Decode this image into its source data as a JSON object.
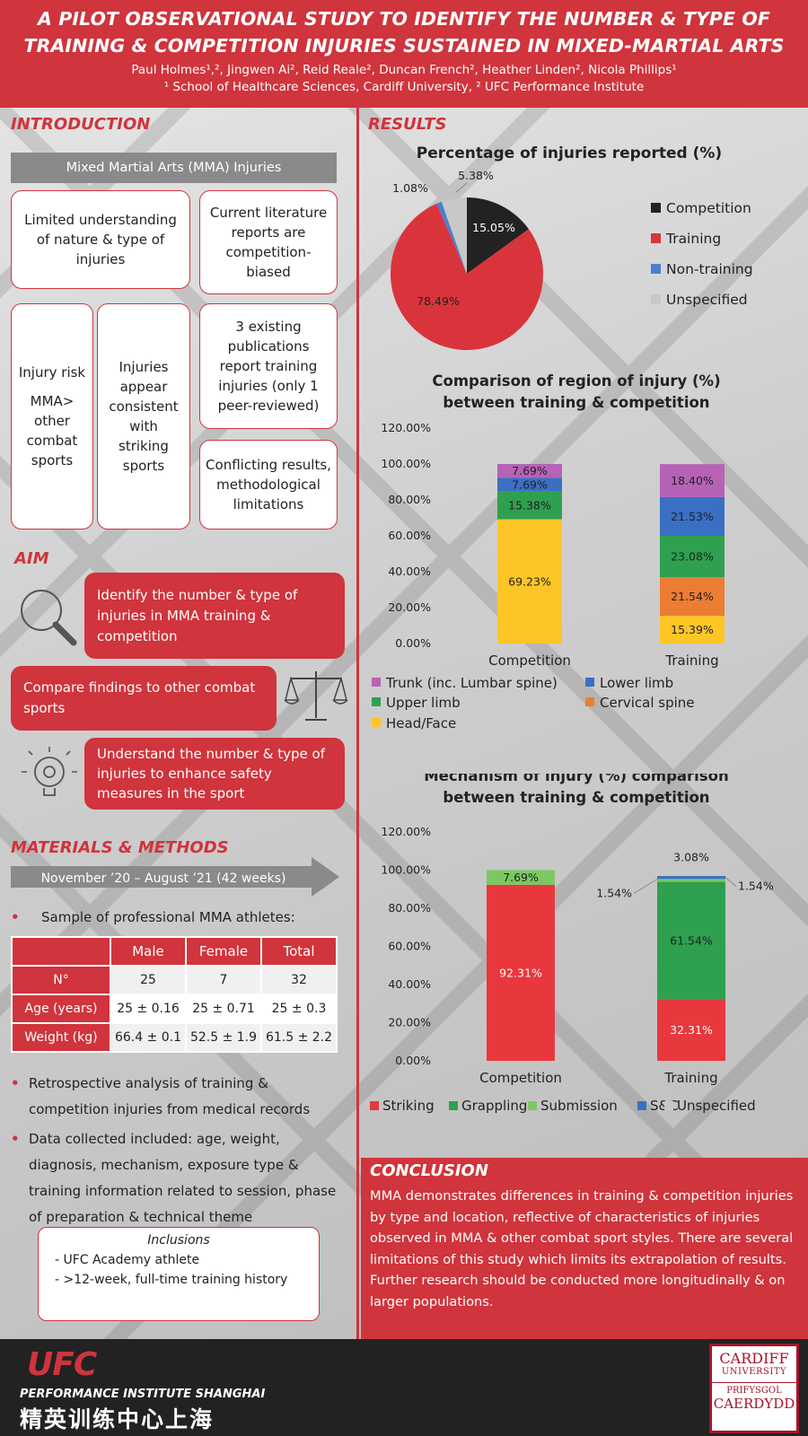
{
  "header": {
    "title_line1": "A PILOT OBSERVATIONAL STUDY TO IDENTIFY THE NUMBER & TYPE OF",
    "title_line2": "TRAINING & COMPETITION INJURIES SUSTAINED IN MIXED-MARTIAL ARTS",
    "authors": "Paul Holmes¹,², Jingwen Ai², Reid Reale², Duncan French², Heather Linden², Nicola Phillips¹",
    "affiliations": "¹ School of Healthcare Sciences, Cardiff University, ² UFC Performance Institute"
  },
  "introduction": {
    "heading": "INTRODUCTION",
    "banner": "Mixed Martial Arts (MMA) Injuries",
    "card1": "Limited understanding of nature & type of injuries",
    "card2": "Current literature reports are competition-biased",
    "card3a": "Injury risk",
    "card3b": "MMA> other combat sports",
    "card4": "Injuries appear consistent with striking sports",
    "card5": "3 existing publications report training injuries (only 1 peer-reviewed)",
    "card6": "Conflicting results, methodological limitations"
  },
  "aim": {
    "heading": "AIM",
    "item1": "Identify the number & type of injuries in MMA training & competition",
    "item2": "Compare findings to other combat sports",
    "item3": "Understand the number & type of injuries to enhance safety measures in the sport"
  },
  "methods": {
    "heading": "MATERIALS & METHODS",
    "period": "November ’20 – August ’21 (42 weeks)",
    "sample": "Sample of professional MMA athletes:",
    "table": {
      "headers": [
        "Male",
        "Female",
        "Total"
      ],
      "rows": [
        {
          "label": "N°",
          "values": [
            "25",
            "7",
            "32"
          ]
        },
        {
          "label": "Age (years)",
          "values": [
            "25 ± 0.16",
            "25 ± 0.71",
            "25 ± 0.3"
          ]
        },
        {
          "label": "Weight (kg)",
          "values": [
            "66.4 ± 0.1",
            "52.5 ± 1.9",
            "61.5 ± 2.2"
          ]
        }
      ]
    },
    "bullet1": "Retrospective analysis of training & competition injuries from medical records",
    "bullet2": "Data collected included: age, weight, diagnosis, mechanism, exposure type & training information related to session, phase of preparation & technical theme",
    "inclusions_title": "Inclusions",
    "inclusion1": "- UFC Academy athlete",
    "inclusion2": "- >12-week, full-time training history"
  },
  "results": {
    "heading": "RESULTS"
  },
  "conclusion": {
    "heading": "CONCLUSION",
    "text": "MMA demonstrates differences in training & competition injuries by type and location, reflective of characteristics of injuries observed in MMA & other combat sport styles. There are several limitations of this study which limits its extrapolation of results. Further research should be conducted more longitudinally & on larger populations."
  },
  "footer": {
    "ufc": "UFC",
    "pi": "PERFORMANCE INSTITUTE SHANGHAI",
    "cn": "精英训练中心上海",
    "cardiff1": "CARDIFF",
    "cardiff2": "UNIVERSITY",
    "cardiff3": "PRIFYSGOL",
    "cardiff4": "CAERDYDD"
  },
  "colors": {
    "accent": "#d0343c",
    "competition": "#222222",
    "training": "#d9343c",
    "nontraining": "#4a7fd1",
    "unspecified": "#c8c8c8",
    "trunk": "#b662b6",
    "lowerlimb": "#3a6fc4",
    "upperlimb": "#2ea04f",
    "cervical": "#ec7d32",
    "head": "#fec526",
    "striking": "#e8383d",
    "grappling": "#2ea04f",
    "submission": "#7bc862",
    "sc": "#3a6fc4"
  },
  "chart_data": [
    {
      "type": "pie",
      "title": "Percentage of injuries reported (%)",
      "labels": [
        "Competition",
        "Training",
        "Non-training",
        "Unspecified"
      ],
      "values": [
        15.05,
        78.49,
        1.08,
        5.38
      ],
      "value_labels": [
        "15.05%",
        "78.49%",
        "1.08%",
        "5.38%"
      ],
      "legend": "right"
    },
    {
      "type": "bar",
      "stacked": true,
      "title": "Comparison of region of injury (%) between training & competition",
      "categories": [
        "Competition",
        "Training"
      ],
      "ylim": [
        0,
        120
      ],
      "yticks": [
        "0.00%",
        "20.00%",
        "40.00%",
        "60.00%",
        "80.00%",
        "100.00%",
        "120.00%"
      ],
      "series": [
        {
          "name": "Head/Face",
          "values": [
            69.23,
            15.39
          ],
          "labels": [
            "69.23%",
            "15.39%"
          ]
        },
        {
          "name": "Cervical spine",
          "values": [
            0,
            21.54
          ],
          "labels": [
            "",
            "21.54%"
          ]
        },
        {
          "name": "Upper limb",
          "values": [
            15.38,
            23.08
          ],
          "labels": [
            "15.38%",
            "23.08%"
          ]
        },
        {
          "name": "Lower limb",
          "values": [
            7.69,
            21.53
          ],
          "labels": [
            "7.69%",
            "21.53%"
          ]
        },
        {
          "name": "Trunk (inc. Lumbar spine)",
          "values": [
            7.69,
            18.4
          ],
          "labels": [
            "7.69%",
            "18.40%"
          ]
        }
      ],
      "legend": "bottom"
    },
    {
      "type": "bar",
      "stacked": true,
      "title": "Mechanism of injury (%) comparison between training & competition",
      "categories": [
        "Competition",
        "Training"
      ],
      "ylim": [
        0,
        120
      ],
      "yticks": [
        "0.00%",
        "20.00%",
        "40.00%",
        "60.00%",
        "80.00%",
        "100.00%",
        "120.00%"
      ],
      "series": [
        {
          "name": "Striking",
          "values": [
            92.31,
            32.31
          ],
          "labels": [
            "92.31%",
            "32.31%"
          ]
        },
        {
          "name": "Grappling",
          "values": [
            0,
            61.54
          ],
          "labels": [
            "",
            "61.54%"
          ]
        },
        {
          "name": "Submission",
          "values": [
            7.69,
            1.54
          ],
          "labels": [
            "7.69%",
            "1.54%"
          ]
        },
        {
          "name": "S&C",
          "values": [
            0,
            1.54
          ],
          "labels": [
            "",
            "1.54%"
          ]
        },
        {
          "name": "Unspecified",
          "values": [
            0,
            3.08
          ],
          "labels": [
            "",
            "3.08%"
          ]
        }
      ],
      "legend": "bottom"
    }
  ]
}
